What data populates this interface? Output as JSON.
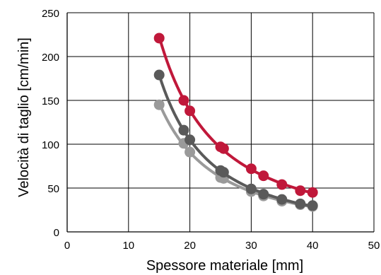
{
  "chart_data": {
    "type": "scatter",
    "title": "",
    "xlabel": "Spessore materiale [mm]",
    "ylabel": "Velocità di taglio [cm/min]",
    "xlim": [
      0,
      50
    ],
    "ylim": [
      0,
      250
    ],
    "x_ticks": [
      0,
      10,
      20,
      30,
      40,
      50
    ],
    "y_ticks": [
      0,
      50,
      100,
      150,
      200,
      250
    ],
    "grid": true,
    "legend": "none",
    "series": [
      {
        "color": "#c0183a",
        "points": [
          [
            15,
            221
          ],
          [
            19,
            150
          ],
          [
            20,
            138
          ],
          [
            25,
            97
          ],
          [
            25.5,
            95
          ],
          [
            30,
            72
          ],
          [
            32,
            64
          ],
          [
            35,
            54
          ],
          [
            38,
            47
          ],
          [
            40,
            45
          ]
        ]
      },
      {
        "color": "#5a5a5a",
        "points": [
          [
            15,
            179
          ],
          [
            19,
            116
          ],
          [
            20,
            105
          ],
          [
            25,
            70
          ],
          [
            25.5,
            68
          ],
          [
            30,
            49
          ],
          [
            32,
            43
          ],
          [
            35,
            37
          ],
          [
            38,
            32
          ],
          [
            40,
            30
          ]
        ]
      },
      {
        "color": "#9a9a9a",
        "points": [
          [
            15,
            145
          ],
          [
            19,
            101
          ],
          [
            20,
            91
          ],
          [
            25,
            62
          ],
          [
            25.5,
            61
          ],
          [
            30,
            46
          ],
          [
            32,
            41
          ],
          [
            35,
            35
          ],
          [
            38,
            31
          ],
          [
            40,
            29
          ]
        ]
      }
    ]
  }
}
